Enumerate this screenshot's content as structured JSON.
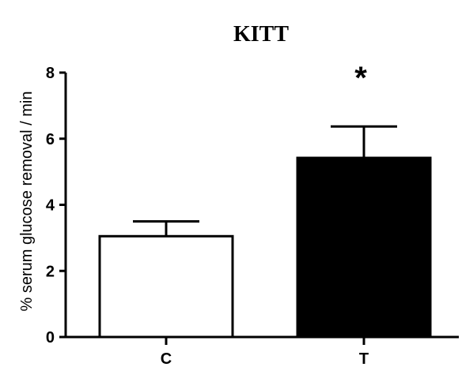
{
  "chart_data": {
    "type": "bar",
    "title": "KITT",
    "ylabel": "% serum glucose removal / min",
    "xlabel": "",
    "categories": [
      "C",
      "T"
    ],
    "values": [
      3.05,
      5.42
    ],
    "errors": [
      0.45,
      0.95
    ],
    "bar_colors": [
      "#ffffff",
      "#000000"
    ],
    "ylim": [
      0,
      8
    ],
    "yticks": [
      "0",
      "2",
      "4",
      "6",
      "8"
    ],
    "ytick_values": [
      0,
      2,
      4,
      6,
      8
    ],
    "grid": false,
    "legend": "none",
    "annotations": [
      {
        "category": "T",
        "text": "*"
      }
    ]
  }
}
